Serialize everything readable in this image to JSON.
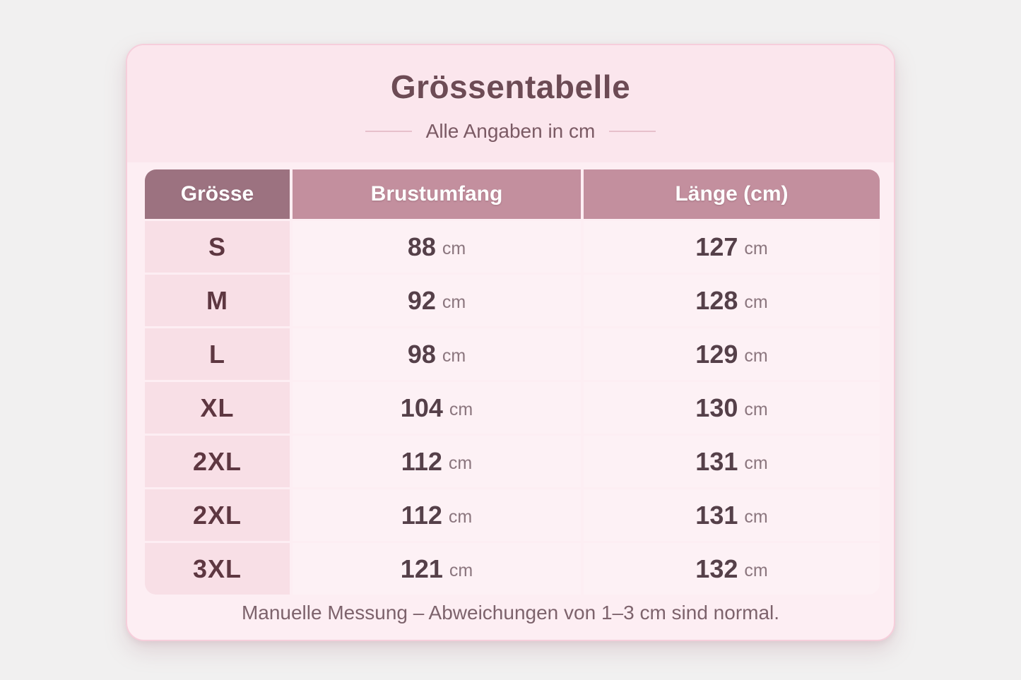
{
  "card": {
    "title": "Grössentabelle",
    "subtitle": "Alle Angaben in cm",
    "footer_note": "Manuelle Messung – Abweichungen von 1–3 cm sind normal."
  },
  "table": {
    "unit": "cm",
    "headers": [
      "Grösse",
      "Brustumfang",
      "Länge (cm)"
    ],
    "rows": [
      {
        "size": "S",
        "chest": "88",
        "length": "127"
      },
      {
        "size": "M",
        "chest": "92",
        "length": "128"
      },
      {
        "size": "L",
        "chest": "98",
        "length": "129"
      },
      {
        "size": "XL",
        "chest": "104",
        "length": "130"
      },
      {
        "size": "2XL",
        "chest": "112",
        "length": "131"
      },
      {
        "size": "2XL",
        "chest": "112",
        "length": "131"
      },
      {
        "size": "3XL",
        "chest": "121",
        "length": "132"
      }
    ]
  },
  "colors": {
    "page_background": "#f1f0f0",
    "card_background": "#fdeef3",
    "card_border": "#f6cedb",
    "title_panel_background": "#fbe6ed",
    "header_first_cell": "#9c7280",
    "header_cells": "#c38f9e",
    "size_column_cell": "#f8dfe6",
    "value_cell": "#fdf1f5",
    "title_text": "#6d4b55",
    "size_text": "#5e3741",
    "value_text": "#554049",
    "unit_text": "#8b767e"
  },
  "chart_data": {
    "type": "table",
    "title": "Grössentabelle",
    "subtitle": "Alle Angaben in cm",
    "columns": [
      "Grösse",
      "Brustumfang",
      "Länge (cm)"
    ],
    "rows": [
      [
        "S",
        "88 cm",
        "127 cm"
      ],
      [
        "M",
        "92 cm",
        "128 cm"
      ],
      [
        "L",
        "98 cm",
        "129 cm"
      ],
      [
        "XL",
        "104 cm",
        "130 cm"
      ],
      [
        "2XL",
        "112 cm",
        "131 cm"
      ],
      [
        "2XL",
        "112 cm",
        "131 cm"
      ],
      [
        "3XL",
        "121 cm",
        "132 cm"
      ]
    ],
    "note": "Manuelle Messung – Abweichungen von 1–3 cm sind normal."
  }
}
